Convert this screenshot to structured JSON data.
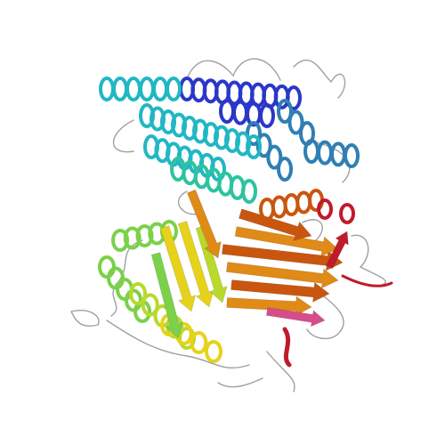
{
  "scene": {
    "background": "#ffffff",
    "representation": "cartoon",
    "color_scheme": "rainbow N-to-C",
    "loop_color": "#a0a0a0",
    "palette": {
      "blue": "#2b37c9",
      "steelblue": "#2f7fb3",
      "cyan": "#21b7c4",
      "teal": "#2cc3a0",
      "green": "#7bd14a",
      "lime": "#b9d92b",
      "yellow": "#e6d21a",
      "orange": "#e08a17",
      "darkorange": "#c9560f",
      "red": "#c11b2b",
      "magenta": "#d84c8b"
    }
  }
}
